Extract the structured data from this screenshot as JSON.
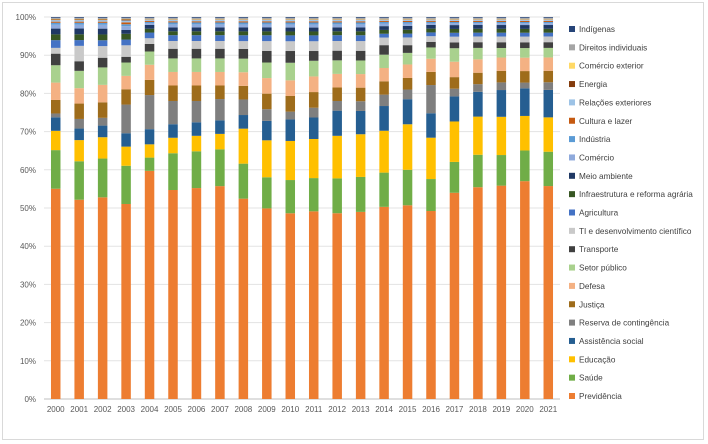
{
  "chart_data": {
    "type": "bar",
    "stacked": true,
    "normalized": true,
    "title": "",
    "xlabel": "",
    "ylabel": "",
    "ylim": [
      0,
      100
    ],
    "y_ticks": [
      "0%",
      "10%",
      "20%",
      "30%",
      "40%",
      "50%",
      "60%",
      "70%",
      "80%",
      "90%",
      "100%"
    ],
    "categories": [
      "2000",
      "2001",
      "2002",
      "2003",
      "2004",
      "2005",
      "2006",
      "2007",
      "2008",
      "2009",
      "2010",
      "2011",
      "2012",
      "2013",
      "2014",
      "2015",
      "2016",
      "2017",
      "2018",
      "2019",
      "2020",
      "2021"
    ],
    "legend_position": "right",
    "series": [
      {
        "name": "Previdência",
        "color": "#ed7d31",
        "values": [
          54.5,
          51.8,
          52.0,
          51.0,
          60.2,
          54.0,
          54.5,
          55.0,
          51.5,
          49.0,
          47.5,
          48.0,
          48.0,
          48.2,
          50.5,
          50.2,
          50.0,
          53.5,
          55.5,
          55.8,
          56.8,
          55.8
        ]
      },
      {
        "name": "Saúde",
        "color": "#70ad47",
        "values": [
          10.0,
          10.0,
          10.0,
          10.0,
          3.5,
          9.5,
          9.5,
          9.5,
          9.0,
          8.0,
          8.5,
          8.5,
          9.0,
          9.0,
          9.0,
          9.2,
          8.5,
          8.0,
          8.5,
          8.0,
          8.0,
          9.0
        ]
      },
      {
        "name": "Educação",
        "color": "#ffc000",
        "values": [
          5.0,
          5.5,
          5.5,
          5.0,
          3.5,
          4.0,
          4.0,
          4.0,
          9.0,
          9.5,
          10.0,
          10.0,
          11.0,
          11.0,
          11.0,
          11.8,
          11.0,
          10.5,
          10.0,
          10.0,
          9.0,
          9.0
        ]
      },
      {
        "name": "Assistência social",
        "color": "#255e91",
        "values": [
          3.5,
          3.0,
          3.0,
          3.5,
          4.0,
          3.5,
          3.5,
          3.5,
          3.5,
          5.0,
          5.5,
          5.5,
          6.5,
          6.0,
          6.5,
          6.5,
          6.5,
          6.5,
          6.5,
          7.0,
          7.2,
          7.2
        ]
      },
      {
        "name": "Reserva de contingência",
        "color": "#7f7f7f",
        "values": [
          1.0,
          2.5,
          2.0,
          7.5,
          9.0,
          6.0,
          5.5,
          5.5,
          4.0,
          3.0,
          2.0,
          2.5,
          2.5,
          2.5,
          3.0,
          2.5,
          7.5,
          2.0,
          2.0,
          2.0,
          1.5,
          2.0
        ]
      },
      {
        "name": "Justiça",
        "color": "#9e6c1b",
        "values": [
          3.5,
          4.0,
          4.0,
          4.0,
          4.0,
          4.0,
          4.0,
          3.5,
          3.5,
          4.0,
          4.0,
          4.0,
          3.5,
          3.5,
          3.5,
          3.0,
          3.5,
          3.0,
          3.0,
          3.0,
          3.0,
          3.0
        ]
      },
      {
        "name": "Defesa",
        "color": "#f4b183",
        "values": [
          4.5,
          4.0,
          4.5,
          3.5,
          4.0,
          3.5,
          3.5,
          3.5,
          3.5,
          4.0,
          4.0,
          4.0,
          3.5,
          3.5,
          3.5,
          3.5,
          3.5,
          4.0,
          3.5,
          3.5,
          3.5,
          3.5
        ]
      },
      {
        "name": "Setor público",
        "color": "#a9d18e",
        "values": [
          4.5,
          4.5,
          4.5,
          3.5,
          3.5,
          3.5,
          3.5,
          3.5,
          3.5,
          4.0,
          4.5,
          4.0,
          3.5,
          3.5,
          3.5,
          3.0,
          3.0,
          3.5,
          3.0,
          2.5,
          2.5,
          2.5
        ]
      },
      {
        "name": "Transporte",
        "color": "#404040",
        "values": [
          3.0,
          2.5,
          2.5,
          1.5,
          2.0,
          2.5,
          2.5,
          2.5,
          2.5,
          3.0,
          3.0,
          2.5,
          2.5,
          2.5,
          2.5,
          2.0,
          1.5,
          1.5,
          1.5,
          1.5,
          1.5,
          1.5
        ]
      },
      {
        "name": "TI e desenvolvimento científico",
        "color": "#c9c9c9",
        "values": [
          1.5,
          4.0,
          3.0,
          3.0,
          1.5,
          2.0,
          2.0,
          2.0,
          2.0,
          2.5,
          2.5,
          2.5,
          2.5,
          2.5,
          2.0,
          2.0,
          1.5,
          1.5,
          1.5,
          1.5,
          1.5,
          1.5
        ]
      },
      {
        "name": "Agricultura",
        "color": "#4472c4",
        "values": [
          2.0,
          1.5,
          1.5,
          1.5,
          1.5,
          1.5,
          1.5,
          1.5,
          1.5,
          1.5,
          1.5,
          1.5,
          1.5,
          1.5,
          1.0,
          1.0,
          1.0,
          1.0,
          1.0,
          1.0,
          1.0,
          1.0
        ]
      },
      {
        "name": "Infraestrutura e reforma agrária",
        "color": "#375623",
        "values": [
          1.5,
          1.5,
          1.5,
          1.5,
          1.0,
          1.0,
          1.0,
          1.0,
          1.0,
          1.0,
          1.0,
          1.0,
          1.0,
          1.0,
          1.0,
          1.0,
          1.0,
          1.0,
          1.0,
          1.0,
          1.0,
          1.0
        ]
      },
      {
        "name": "Meio ambiente",
        "color": "#1f3864",
        "values": [
          1.5,
          1.5,
          1.5,
          1.0,
          1.0,
          1.0,
          1.0,
          1.0,
          1.0,
          1.0,
          1.0,
          1.0,
          1.0,
          1.0,
          1.0,
          1.0,
          1.0,
          1.0,
          1.0,
          1.0,
          1.0,
          1.0
        ]
      },
      {
        "name": "Comércio",
        "color": "#8faadc",
        "values": [
          1.0,
          1.0,
          1.0,
          1.0,
          0.5,
          0.8,
          0.8,
          0.8,
          0.8,
          0.8,
          0.8,
          0.8,
          0.8,
          0.8,
          0.7,
          0.6,
          0.5,
          0.5,
          0.5,
          0.5,
          0.5,
          0.5
        ]
      },
      {
        "name": "Indústria",
        "color": "#5b9bd5",
        "values": [
          0.5,
          0.5,
          0.5,
          0.5,
          0.3,
          0.5,
          0.5,
          0.5,
          0.5,
          0.5,
          0.5,
          0.5,
          0.5,
          0.5,
          0.4,
          0.4,
          0.3,
          0.3,
          0.3,
          0.3,
          0.3,
          0.3
        ]
      },
      {
        "name": "Cultura e lazer",
        "color": "#c55a11",
        "values": [
          0.3,
          0.3,
          0.3,
          0.5,
          0.3,
          0.3,
          0.3,
          0.3,
          0.3,
          0.3,
          0.3,
          0.3,
          0.3,
          0.3,
          0.3,
          0.3,
          0.3,
          0.3,
          0.3,
          0.3,
          0.3,
          0.3
        ]
      },
      {
        "name": "Relações exteriores",
        "color": "#9dc3e6",
        "values": [
          0.4,
          0.4,
          0.4,
          0.5,
          0.3,
          0.4,
          0.4,
          0.4,
          0.4,
          0.4,
          0.4,
          0.4,
          0.4,
          0.4,
          0.3,
          0.3,
          0.3,
          0.3,
          0.3,
          0.3,
          0.3,
          0.3
        ]
      },
      {
        "name": "Energia",
        "color": "#843c0c",
        "values": [
          0.2,
          0.2,
          0.2,
          0.3,
          0.1,
          0.1,
          0.1,
          0.1,
          0.1,
          0.1,
          0.1,
          0.1,
          0.1,
          0.1,
          0.1,
          0.1,
          0.1,
          0.1,
          0.1,
          0.1,
          0.1,
          0.1
        ]
      },
      {
        "name": "Comércio exterior",
        "color": "#ffd966",
        "values": [
          0.1,
          0.1,
          0.1,
          0.1,
          0.1,
          0.1,
          0.1,
          0.1,
          0.1,
          0.1,
          0.1,
          0.1,
          0.1,
          0.1,
          0.1,
          0.1,
          0.1,
          0.1,
          0.1,
          0.1,
          0.1,
          0.1
        ]
      },
      {
        "name": "Direitos individuais",
        "color": "#a5a5a5",
        "values": [
          0.3,
          0.3,
          0.3,
          0.3,
          0.3,
          0.3,
          0.3,
          0.3,
          0.3,
          0.3,
          0.3,
          0.3,
          0.3,
          0.3,
          0.3,
          0.3,
          0.3,
          0.3,
          0.3,
          0.3,
          0.3,
          0.3
        ]
      },
      {
        "name": "Indígenas",
        "color": "#264478",
        "values": [
          0.2,
          0.2,
          0.2,
          0.2,
          0.2,
          0.2,
          0.2,
          0.2,
          0.2,
          0.2,
          0.2,
          0.2,
          0.2,
          0.2,
          0.2,
          0.2,
          0.2,
          0.2,
          0.2,
          0.2,
          0.2,
          0.2
        ]
      }
    ]
  }
}
